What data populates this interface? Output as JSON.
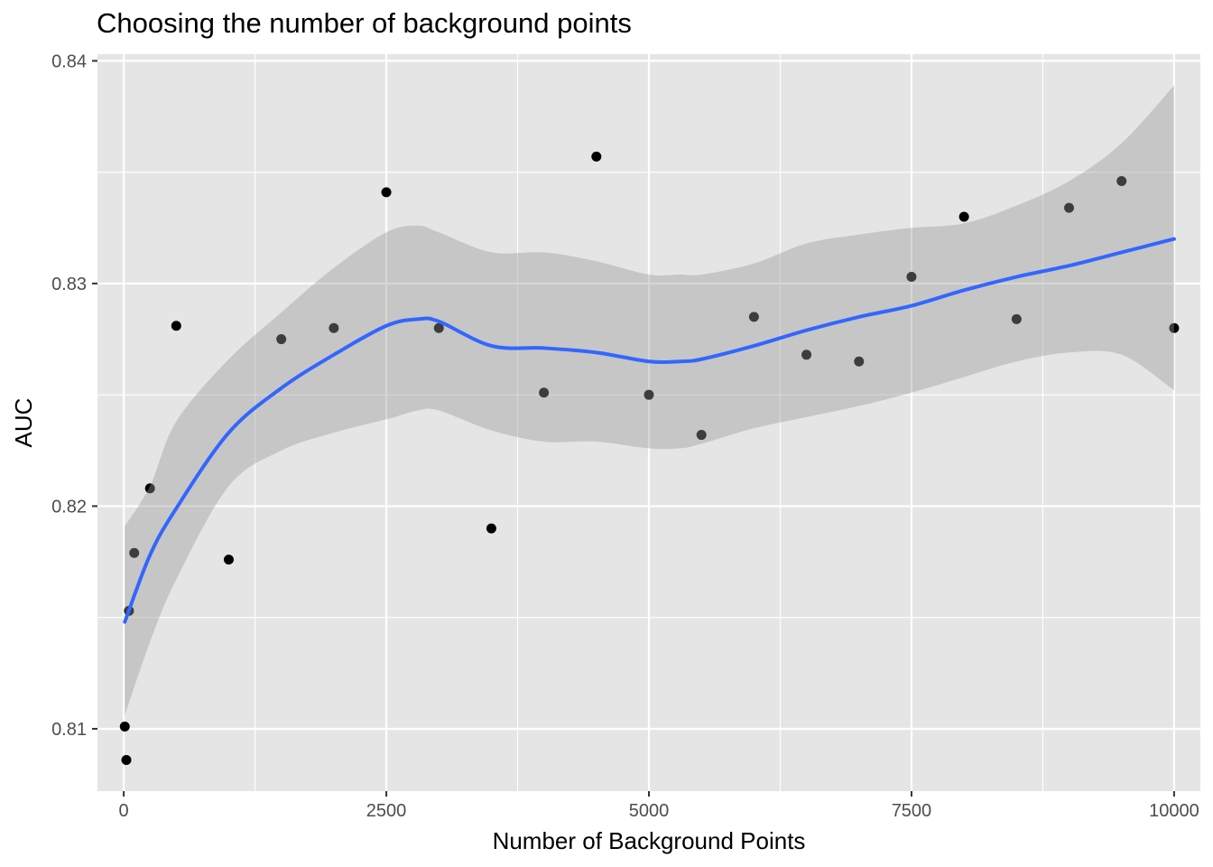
{
  "chart_data": {
    "type": "scatter",
    "title": "Choosing the number of background points",
    "xlabel": "Number of Background Points",
    "ylabel": "AUC",
    "xlim": [
      -250,
      10250
    ],
    "ylim": [
      0.8072,
      0.8403
    ],
    "xticks": [
      0,
      2500,
      5000,
      7500,
      10000
    ],
    "xtick_labels": [
      "0",
      "2500",
      "5000",
      "7500",
      "10000"
    ],
    "yticks": [
      0.81,
      0.82,
      0.83,
      0.84
    ],
    "ytick_labels": [
      "0.81",
      "0.82",
      "0.83",
      "0.84"
    ],
    "grid": true,
    "colors": {
      "panel": "#e5e5e5",
      "grid": "#ffffff",
      "points": "#000000",
      "smooth_line": "#3366ff",
      "ribbon": "#999999"
    },
    "points": [
      {
        "x": 10,
        "y": 0.8101
      },
      {
        "x": 25,
        "y": 0.8086
      },
      {
        "x": 50,
        "y": 0.8153
      },
      {
        "x": 100,
        "y": 0.8179
      },
      {
        "x": 250,
        "y": 0.8208
      },
      {
        "x": 500,
        "y": 0.8281
      },
      {
        "x": 1000,
        "y": 0.8176
      },
      {
        "x": 1500,
        "y": 0.8275
      },
      {
        "x": 2000,
        "y": 0.828
      },
      {
        "x": 2500,
        "y": 0.8341
      },
      {
        "x": 3000,
        "y": 0.828
      },
      {
        "x": 3500,
        "y": 0.819
      },
      {
        "x": 4000,
        "y": 0.8251
      },
      {
        "x": 4500,
        "y": 0.8357
      },
      {
        "x": 5000,
        "y": 0.825
      },
      {
        "x": 5500,
        "y": 0.8232
      },
      {
        "x": 6000,
        "y": 0.8285
      },
      {
        "x": 6500,
        "y": 0.8268
      },
      {
        "x": 7000,
        "y": 0.8265
      },
      {
        "x": 7500,
        "y": 0.8303
      },
      {
        "x": 8000,
        "y": 0.833
      },
      {
        "x": 8500,
        "y": 0.8284
      },
      {
        "x": 9000,
        "y": 0.8334
      },
      {
        "x": 9500,
        "y": 0.8346
      },
      {
        "x": 10000,
        "y": 0.828
      }
    ],
    "smooth": {
      "method": "loess",
      "x": [
        10,
        250,
        500,
        1000,
        1500,
        2000,
        2500,
        2800,
        3000,
        3500,
        4000,
        4500,
        5000,
        5300,
        5500,
        6000,
        6500,
        7000,
        7500,
        8000,
        8500,
        9000,
        9500,
        10000
      ],
      "y": [
        0.8148,
        0.8178,
        0.8199,
        0.8233,
        0.8253,
        0.8268,
        0.8281,
        0.8284,
        0.8283,
        0.8272,
        0.8271,
        0.8269,
        0.8265,
        0.8265,
        0.8266,
        0.8272,
        0.8279,
        0.8285,
        0.829,
        0.8297,
        0.8303,
        0.8308,
        0.8314,
        0.832
      ],
      "lower": [
        0.8106,
        0.8139,
        0.8167,
        0.8209,
        0.8225,
        0.8233,
        0.8239,
        0.8243,
        0.8243,
        0.8234,
        0.8229,
        0.8229,
        0.8226,
        0.8226,
        0.8228,
        0.8235,
        0.824,
        0.8245,
        0.8251,
        0.8258,
        0.8265,
        0.8269,
        0.8268,
        0.8252
      ],
      "upper": [
        0.8191,
        0.8209,
        0.8238,
        0.8266,
        0.8287,
        0.8307,
        0.8323,
        0.8326,
        0.8323,
        0.8314,
        0.8314,
        0.831,
        0.8304,
        0.8304,
        0.8304,
        0.8309,
        0.8318,
        0.8322,
        0.8325,
        0.8327,
        0.8335,
        0.8346,
        0.8363,
        0.8389
      ]
    }
  }
}
